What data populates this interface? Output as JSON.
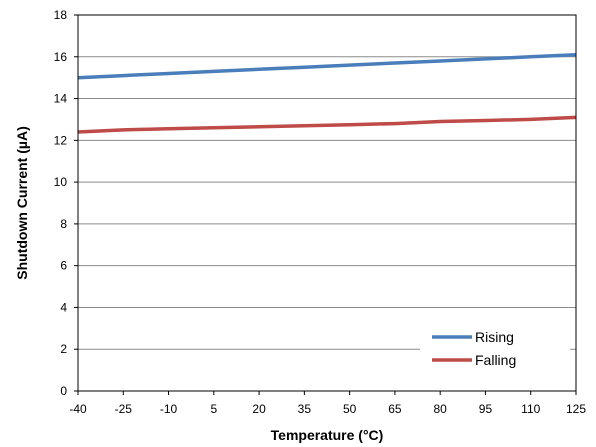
{
  "chart_data": {
    "type": "line",
    "title": "",
    "xlabel": "Temperature (°C)",
    "ylabel": "Shutdown Current (µA)",
    "x": [
      -40,
      -25,
      -10,
      5,
      20,
      35,
      50,
      65,
      80,
      95,
      110,
      125
    ],
    "xlim": [
      -40,
      125
    ],
    "ylim": [
      0,
      18
    ],
    "yticks": [
      0,
      2,
      4,
      6,
      8,
      10,
      12,
      14,
      16,
      18
    ],
    "xticks": [
      -40,
      -25,
      -10,
      5,
      20,
      35,
      50,
      65,
      80,
      95,
      110,
      125
    ],
    "grid": "horizontal",
    "legend_position": "bottom-right",
    "series": [
      {
        "name": "Rising",
        "color": "#4a7ebb",
        "values": [
          15.0,
          15.1,
          15.2,
          15.3,
          15.4,
          15.5,
          15.6,
          15.7,
          15.8,
          15.9,
          16.0,
          16.1
        ]
      },
      {
        "name": "Falling",
        "color": "#be4b48",
        "values": [
          12.4,
          12.5,
          12.55,
          12.6,
          12.65,
          12.7,
          12.75,
          12.8,
          12.9,
          12.95,
          13.0,
          13.1
        ]
      }
    ]
  }
}
